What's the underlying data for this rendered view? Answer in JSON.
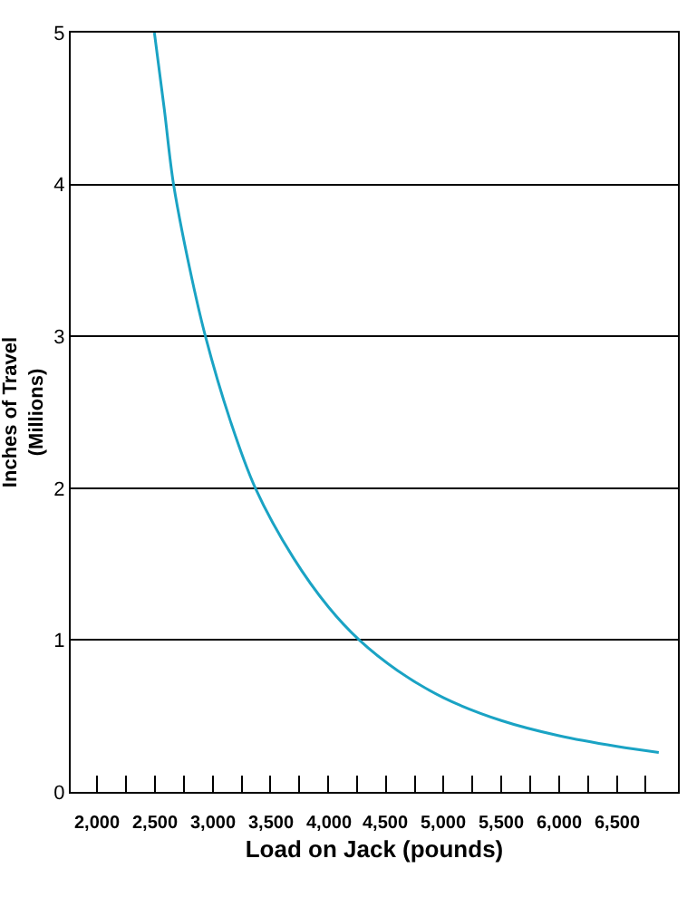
{
  "chart_data": {
    "type": "line",
    "xlabel": "Load on Jack (pounds)",
    "ylabel": "Inches of Travel\n(Millions)",
    "x": [
      2495,
      2580,
      2661,
      2800,
      2937,
      3150,
      3370,
      3700,
      4000,
      4270,
      4600,
      5000,
      5500,
      6000,
      6500,
      6864
    ],
    "series": [
      {
        "color": "#1aa3c4",
        "values": [
          5,
          4.5,
          4,
          3.45,
          3,
          2.45,
          2,
          1.54,
          1.22,
          1,
          0.8,
          0.62,
          0.47,
          0.37,
          0.3,
          0.26
        ]
      }
    ],
    "xlim": [
      1770,
      7030
    ],
    "ylim": [
      0,
      5
    ],
    "xticks": [
      {
        "value": 2000,
        "label": "2,000"
      },
      {
        "value": 2250,
        "label": null
      },
      {
        "value": 2500,
        "label": "2,500"
      },
      {
        "value": 2750,
        "label": null
      },
      {
        "value": 3000,
        "label": "3,000"
      },
      {
        "value": 3250,
        "label": null
      },
      {
        "value": 3500,
        "label": "3,500"
      },
      {
        "value": 3750,
        "label": null
      },
      {
        "value": 4000,
        "label": "4,000"
      },
      {
        "value": 4250,
        "label": null
      },
      {
        "value": 4500,
        "label": "4,500"
      },
      {
        "value": 4750,
        "label": null
      },
      {
        "value": 5000,
        "label": "5,000"
      },
      {
        "value": 5250,
        "label": null
      },
      {
        "value": 5500,
        "label": "5,500"
      },
      {
        "value": 5750,
        "label": null
      },
      {
        "value": 6000,
        "label": "6,000"
      },
      {
        "value": 6250,
        "label": null
      },
      {
        "value": 6500,
        "label": "6,500"
      },
      {
        "value": 6750,
        "label": null
      }
    ],
    "yticks": [
      0,
      1,
      2,
      3,
      4,
      5
    ],
    "grid": "y",
    "marker": "none",
    "line_style": "solid"
  }
}
